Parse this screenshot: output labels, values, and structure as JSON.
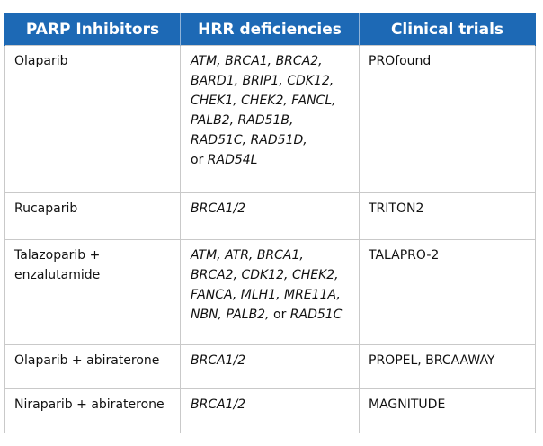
{
  "table": {
    "headers": [
      "PARP Inhibitors",
      "HRR deficiencies",
      "Clinical trials"
    ],
    "rows": [
      {
        "inhibitor": "Olaparib",
        "hrr_lines": [
          "ATM, BRCA1, BRCA2,",
          "BARD1, BRIP1, CDK12,",
          "CHEK1, CHEK2, FANCL,",
          "PALB2, RAD51B,",
          "RAD51C, RAD51D,"
        ],
        "hrr_last_prefix": "or",
        "hrr_last_gene": "RAD54L",
        "trials": "PROfound"
      },
      {
        "inhibitor": "Rucaparib",
        "hrr": "BRCA1/2",
        "trials": "TRITON2"
      },
      {
        "inhibitor_lines": [
          "Talazoparib +",
          "enzalutamide"
        ],
        "hrr_lines": [
          "ATM, ATR, BRCA1,",
          "BRCA2, CDK12, CHEK2,",
          "FANCA, MLH1, MRE11A,"
        ],
        "hrr_last_genes": "NBN, PALB2,",
        "hrr_last_prefix": "or",
        "hrr_last_gene": "RAD51C",
        "trials": "TALAPRO-2"
      },
      {
        "inhibitor": "Olaparib + abiraterone",
        "hrr": "BRCA1/2",
        "trials": "PROPEL, BRCAAWAY"
      },
      {
        "inhibitor": "Niraparib + abiraterone",
        "hrr": "BRCA1/2",
        "trials": "MAGNITUDE"
      }
    ]
  }
}
